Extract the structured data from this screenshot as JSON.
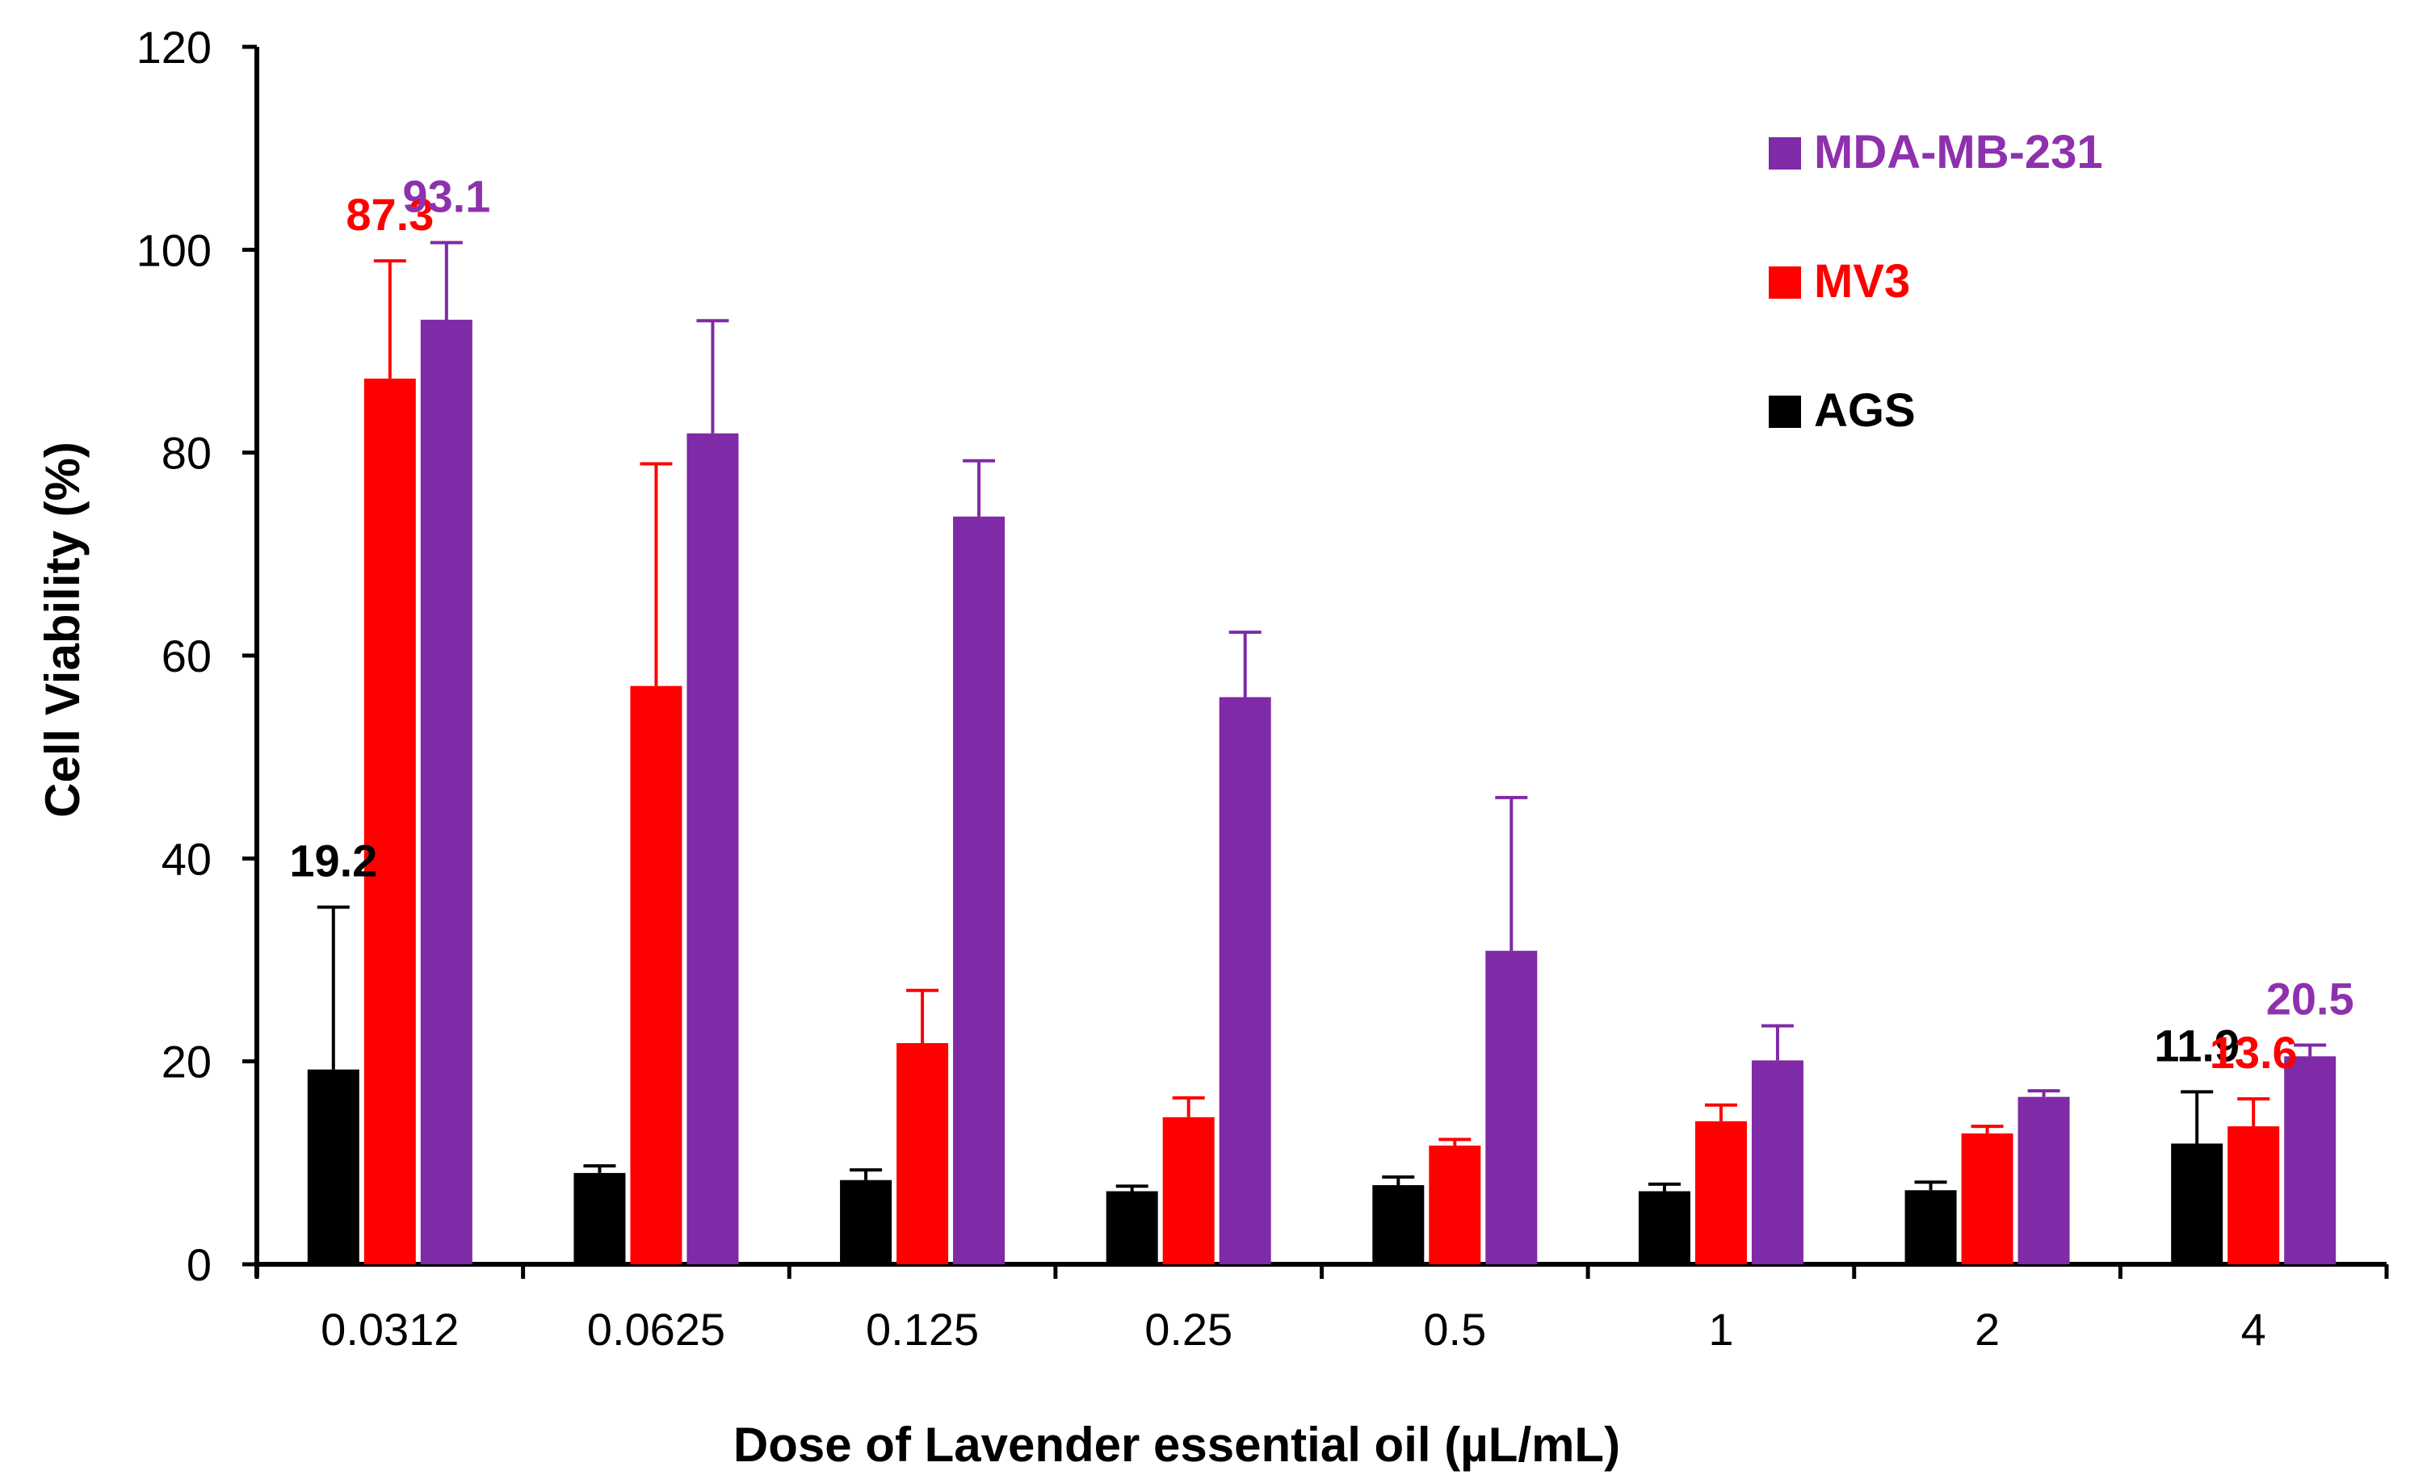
{
  "chart_data": {
    "type": "bar",
    "title": "",
    "xlabel": "Dose of Lavender essential oil (µL/mL)",
    "ylabel": "Cell Viability (%)",
    "ylim": [
      0,
      120
    ],
    "yticks": [
      0,
      20,
      40,
      60,
      80,
      100,
      120
    ],
    "grid": false,
    "legend_position": "top-right",
    "categories": [
      "0.0312",
      "0.0625",
      "0.125",
      "0.25",
      "0.5",
      "1",
      "2",
      "4"
    ],
    "series": [
      {
        "name": "AGS",
        "color": "#000000",
        "label_color": "#000000",
        "values": [
          19.2,
          9.0,
          8.3,
          7.2,
          7.8,
          7.2,
          7.3,
          11.9
        ],
        "errors": [
          16.0,
          0.7,
          1.0,
          0.5,
          0.8,
          0.7,
          0.8,
          5.1
        ],
        "labels": [
          "19.2",
          "",
          "",
          "",
          "",
          "",
          "",
          "11.9"
        ]
      },
      {
        "name": "MV3",
        "color": "#ff0000",
        "label_color": "#ff0000",
        "values": [
          87.3,
          57.0,
          21.8,
          14.5,
          11.7,
          14.1,
          12.9,
          13.6
        ],
        "errors": [
          11.6,
          21.9,
          5.2,
          1.9,
          0.6,
          1.6,
          0.7,
          2.7
        ],
        "labels": [
          "87.3",
          "",
          "",
          "",
          "",
          "",
          "",
          "13.6"
        ]
      },
      {
        "name": "MDA-MB-231",
        "color": "#7f2aa6",
        "label_color": "#8e31ad",
        "values": [
          93.1,
          81.9,
          73.7,
          55.9,
          30.9,
          20.1,
          16.5,
          20.5
        ],
        "errors": [
          7.6,
          11.1,
          5.5,
          6.4,
          15.1,
          3.4,
          0.6,
          1.1
        ],
        "labels": [
          "93.1",
          "",
          "",
          "",
          "",
          "",
          "",
          "20.5"
        ]
      }
    ],
    "legend_order": [
      "MDA-MB-231",
      "MV3",
      "AGS"
    ]
  }
}
